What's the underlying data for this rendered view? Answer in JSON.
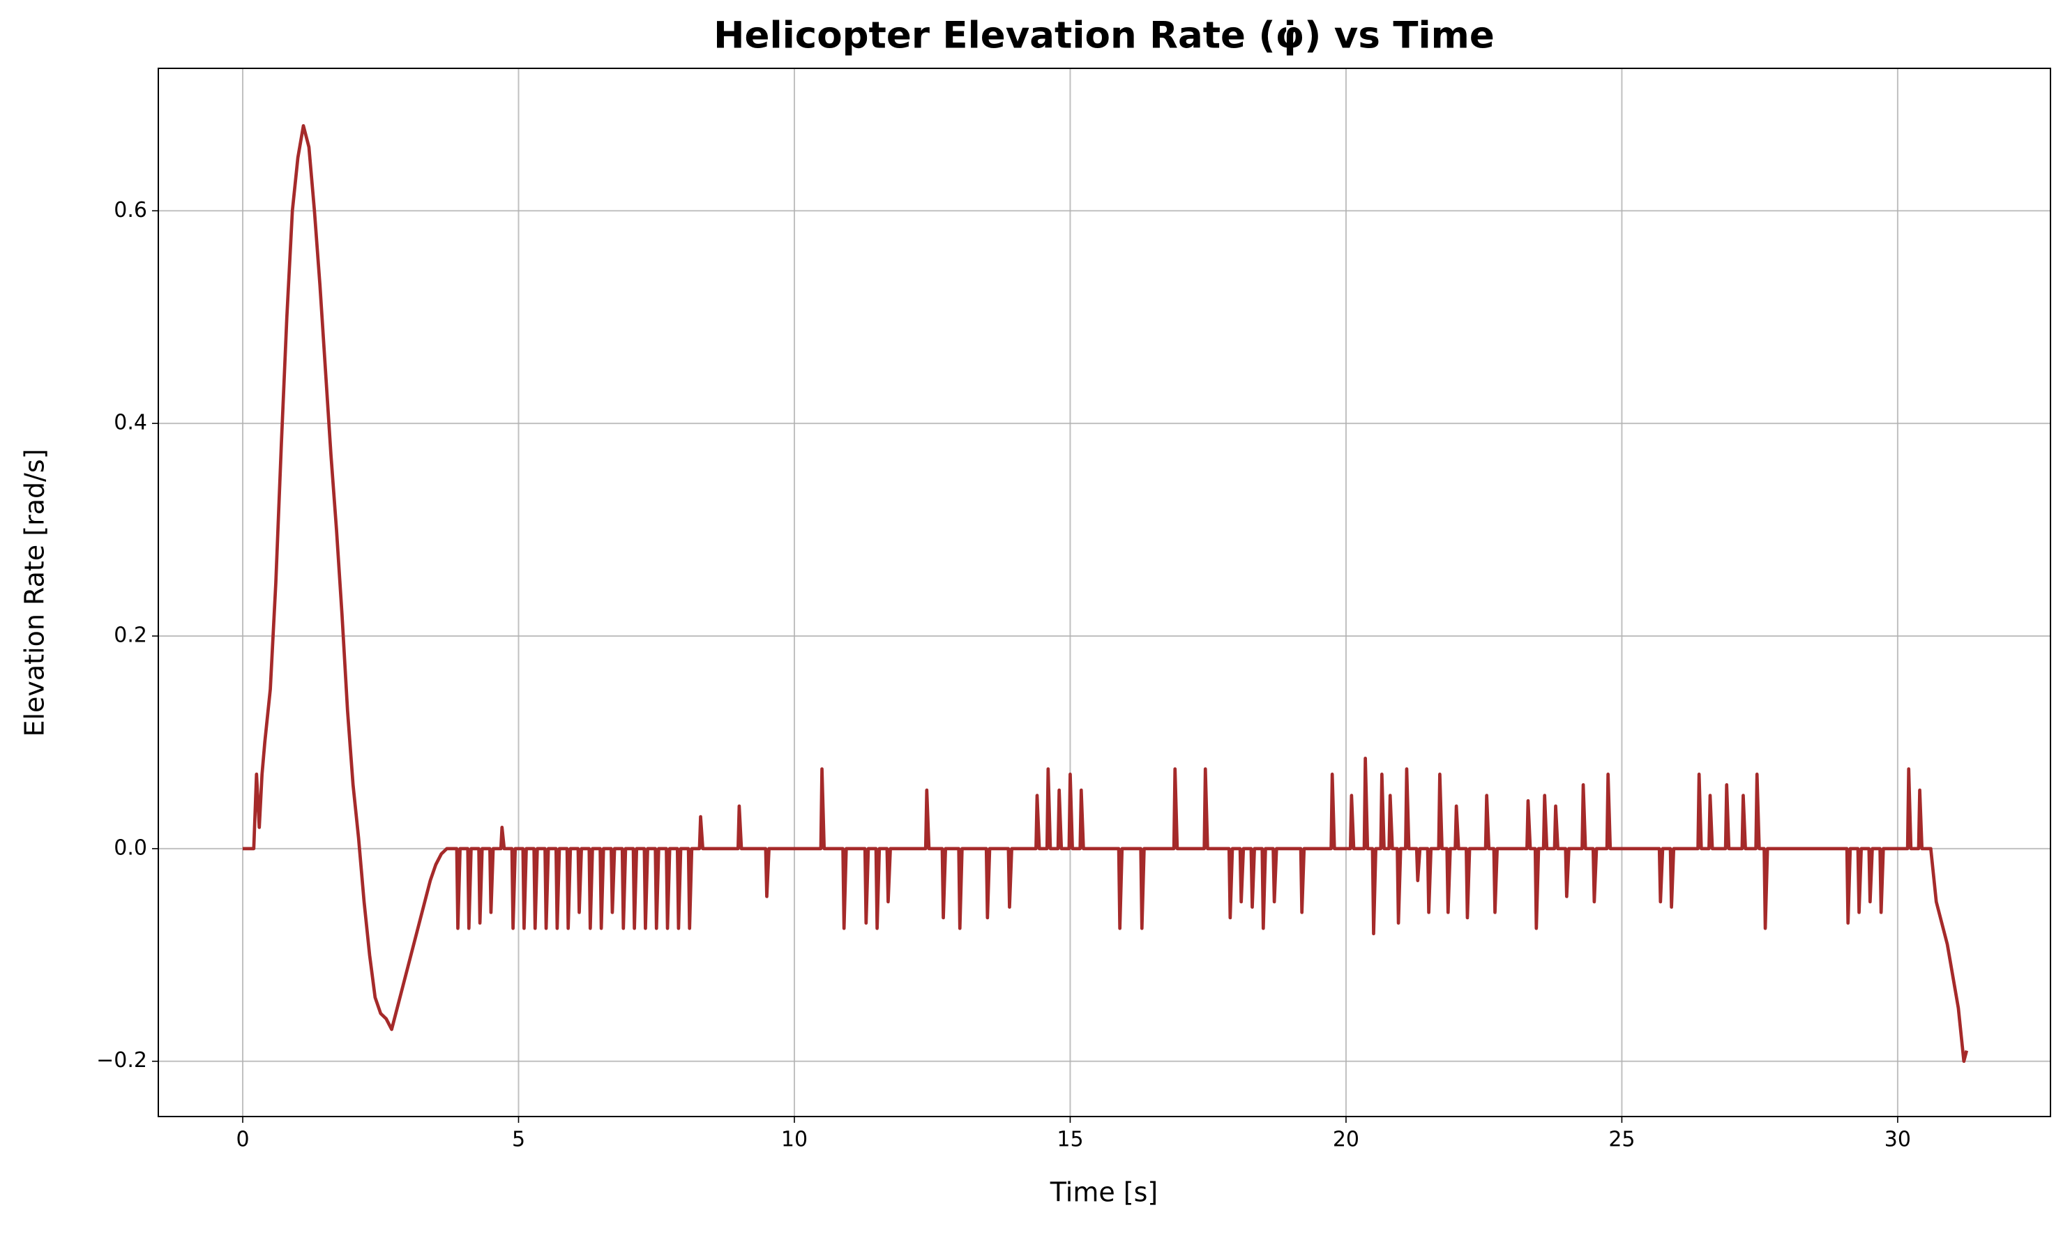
{
  "chart_data": {
    "type": "line",
    "title": "Helicopter Elevation Rate (φ̇) vs Time",
    "x_label": "Time [s]",
    "y_label": "Elevation Rate [rad/s]",
    "xlim": [
      -1.53,
      32.77
    ],
    "ylim": [
      -0.252,
      0.734
    ],
    "xticks": [
      0,
      5,
      10,
      15,
      20,
      25,
      30
    ],
    "yticks": [
      {
        "value": -0.2,
        "label": "−0.2"
      },
      {
        "value": 0,
        "label": "0.0"
      },
      0.2,
      0.4,
      0.6
    ],
    "grid": true,
    "series": [
      {
        "color": "#a52a2a",
        "x": [
          0,
          0.2,
          0.25,
          0.3,
          0.35,
          0.4,
          0.5,
          0.6,
          0.7,
          0.8,
          0.9,
          1.0,
          1.1,
          1.2,
          1.3,
          1.4,
          1.5,
          1.6,
          1.7,
          1.8,
          1.9,
          2.0,
          2.1,
          2.2,
          2.3,
          2.4,
          2.5,
          2.6,
          2.7,
          2.8,
          2.9,
          3.0,
          3.1,
          3.2,
          3.3,
          3.4,
          3.5,
          3.6,
          3.7,
          3.88,
          3.9,
          3.94,
          4.08,
          4.1,
          4.14,
          4.28,
          4.3,
          4.34,
          4.48,
          4.5,
          4.54,
          4.68,
          4.7,
          4.74,
          4.88,
          4.9,
          4.94,
          5.08,
          5.1,
          5.14,
          5.28,
          5.3,
          5.34,
          5.48,
          5.5,
          5.54,
          5.68,
          5.7,
          5.74,
          5.88,
          5.9,
          5.94,
          6.08,
          6.1,
          6.14,
          6.28,
          6.3,
          6.34,
          6.48,
          6.5,
          6.54,
          6.68,
          6.7,
          6.74,
          6.88,
          6.9,
          6.94,
          7.08,
          7.1,
          7.14,
          7.28,
          7.3,
          7.34,
          7.48,
          7.5,
          7.54,
          7.68,
          7.7,
          7.74,
          7.88,
          7.9,
          7.94,
          8.08,
          8.1,
          8.14,
          8.28,
          8.3,
          8.34,
          8.98,
          9.0,
          9.04,
          9.48,
          9.5,
          9.54,
          10.48,
          10.5,
          10.54,
          10.88,
          10.9,
          10.94,
          11.28,
          11.3,
          11.34,
          11.48,
          11.5,
          11.54,
          11.68,
          11.7,
          11.74,
          12.38,
          12.4,
          12.44,
          12.68,
          12.7,
          12.74,
          12.98,
          13.0,
          13.04,
          13.48,
          13.5,
          13.54,
          13.88,
          13.9,
          13.94,
          14.38,
          14.4,
          14.44,
          14.58,
          14.6,
          14.64,
          14.78,
          14.8,
          14.84,
          14.98,
          15.0,
          15.04,
          15.18,
          15.2,
          15.24,
          15.88,
          15.9,
          15.94,
          16.28,
          16.3,
          16.34,
          16.88,
          16.9,
          16.94,
          17.43,
          17.45,
          17.49,
          17.88,
          17.9,
          17.94,
          18.08,
          18.1,
          18.14,
          18.28,
          18.3,
          18.34,
          18.48,
          18.5,
          18.54,
          18.68,
          18.7,
          18.74,
          19.18,
          19.2,
          19.24,
          19.73,
          19.75,
          19.79,
          20.08,
          20.1,
          20.14,
          20.33,
          20.35,
          20.39,
          20.48,
          20.5,
          20.54,
          20.63,
          20.65,
          20.69,
          20.78,
          20.8,
          20.84,
          20.93,
          20.95,
          20.99,
          21.08,
          21.1,
          21.14,
          21.28,
          21.3,
          21.34,
          21.48,
          21.5,
          21.54,
          21.68,
          21.7,
          21.74,
          21.83,
          21.85,
          21.89,
          21.98,
          22.0,
          22.04,
          22.18,
          22.2,
          22.24,
          22.53,
          22.55,
          22.59,
          22.68,
          22.7,
          22.74,
          23.28,
          23.3,
          23.34,
          23.43,
          23.45,
          23.49,
          23.58,
          23.6,
          23.64,
          23.78,
          23.8,
          23.84,
          23.98,
          24.0,
          24.04,
          24.28,
          24.3,
          24.34,
          24.48,
          24.5,
          24.54,
          24.73,
          24.75,
          24.79,
          25.68,
          25.7,
          25.74,
          25.88,
          25.9,
          25.94,
          26.38,
          26.4,
          26.44,
          26.58,
          26.6,
          26.64,
          26.88,
          26.9,
          26.94,
          27.18,
          27.2,
          27.24,
          27.43,
          27.45,
          27.49,
          27.58,
          27.6,
          27.64,
          29.08,
          29.1,
          29.14,
          29.28,
          29.3,
          29.34,
          29.48,
          29.5,
          29.54,
          29.68,
          29.7,
          29.74,
          30.18,
          30.2,
          30.24,
          30.38,
          30.4,
          30.44,
          30.6,
          30.7,
          30.8,
          30.9,
          31.0,
          31.1,
          31.2,
          31.25
        ],
        "values": [
          0,
          0,
          0.07,
          0.02,
          0.07,
          0.1,
          0.15,
          0.25,
          0.38,
          0.5,
          0.6,
          0.65,
          0.68,
          0.66,
          0.6,
          0.53,
          0.45,
          0.37,
          0.3,
          0.22,
          0.13,
          0.06,
          0.01,
          -0.05,
          -0.1,
          -0.14,
          -0.155,
          -0.16,
          -0.17,
          -0.15,
          -0.13,
          -0.11,
          -0.09,
          -0.07,
          -0.05,
          -0.03,
          -0.015,
          -0.005,
          0,
          0,
          -0.075,
          0,
          0,
          -0.075,
          0,
          0,
          -0.07,
          0,
          0,
          -0.06,
          0,
          0,
          0.02,
          0,
          0,
          -0.075,
          0,
          0,
          -0.075,
          0,
          0,
          -0.075,
          0,
          0,
          -0.075,
          0,
          0,
          -0.075,
          0,
          0,
          -0.075,
          0,
          0,
          -0.06,
          0,
          0,
          -0.075,
          0,
          0,
          -0.075,
          0,
          0,
          -0.06,
          0,
          0,
          -0.075,
          0,
          0,
          -0.075,
          0,
          0,
          -0.075,
          0,
          0,
          -0.075,
          0,
          0,
          -0.075,
          0,
          0,
          -0.075,
          0,
          0,
          -0.075,
          0,
          0,
          0.03,
          0,
          0,
          0.04,
          0,
          0,
          -0.045,
          0,
          0,
          0.075,
          0,
          0,
          -0.075,
          0,
          0,
          -0.07,
          0,
          0,
          -0.075,
          0,
          0,
          -0.05,
          0,
          0,
          0.055,
          0,
          0,
          -0.065,
          0,
          0,
          -0.075,
          0,
          0,
          -0.065,
          0,
          0,
          -0.055,
          0,
          0,
          0.05,
          0,
          0,
          0.075,
          0,
          0,
          0.055,
          0,
          0,
          0.07,
          0,
          0,
          0.055,
          0,
          0,
          -0.075,
          0,
          0,
          -0.075,
          0,
          0,
          0.075,
          0,
          0,
          0.075,
          0,
          0,
          -0.065,
          0,
          0,
          -0.05,
          0,
          0,
          -0.055,
          0,
          0,
          -0.075,
          0,
          0,
          -0.05,
          0,
          0,
          -0.06,
          0,
          0,
          0.07,
          0,
          0,
          0.05,
          0,
          0,
          0.085,
          0,
          0,
          -0.08,
          0,
          0,
          0.07,
          0,
          0,
          0.05,
          0,
          0,
          -0.07,
          0,
          0,
          0.075,
          0,
          0,
          -0.03,
          0,
          0,
          -0.06,
          0,
          0,
          0.07,
          0,
          0,
          -0.06,
          0,
          0,
          0.04,
          0,
          0,
          -0.065,
          0,
          0,
          0.05,
          0,
          0,
          -0.06,
          0,
          0,
          0.045,
          0,
          0,
          -0.075,
          0,
          0,
          0.05,
          0,
          0,
          0.04,
          0,
          0,
          -0.045,
          0,
          0,
          0.06,
          0,
          0,
          -0.05,
          0,
          0,
          0.07,
          0,
          0,
          -0.05,
          0,
          0,
          -0.055,
          0,
          0,
          0.07,
          0,
          0,
          0.05,
          0,
          0,
          0.06,
          0,
          0,
          0.05,
          0,
          0,
          0.07,
          0,
          0,
          -0.075,
          0,
          0,
          -0.07,
          0,
          0,
          -0.06,
          0,
          0,
          -0.05,
          0,
          0,
          -0.06,
          0,
          0,
          0.075,
          0,
          0,
          0.055,
          0,
          0,
          -0.05,
          -0.07,
          -0.09,
          -0.12,
          -0.15,
          -0.2,
          -0.19
        ]
      }
    ]
  }
}
